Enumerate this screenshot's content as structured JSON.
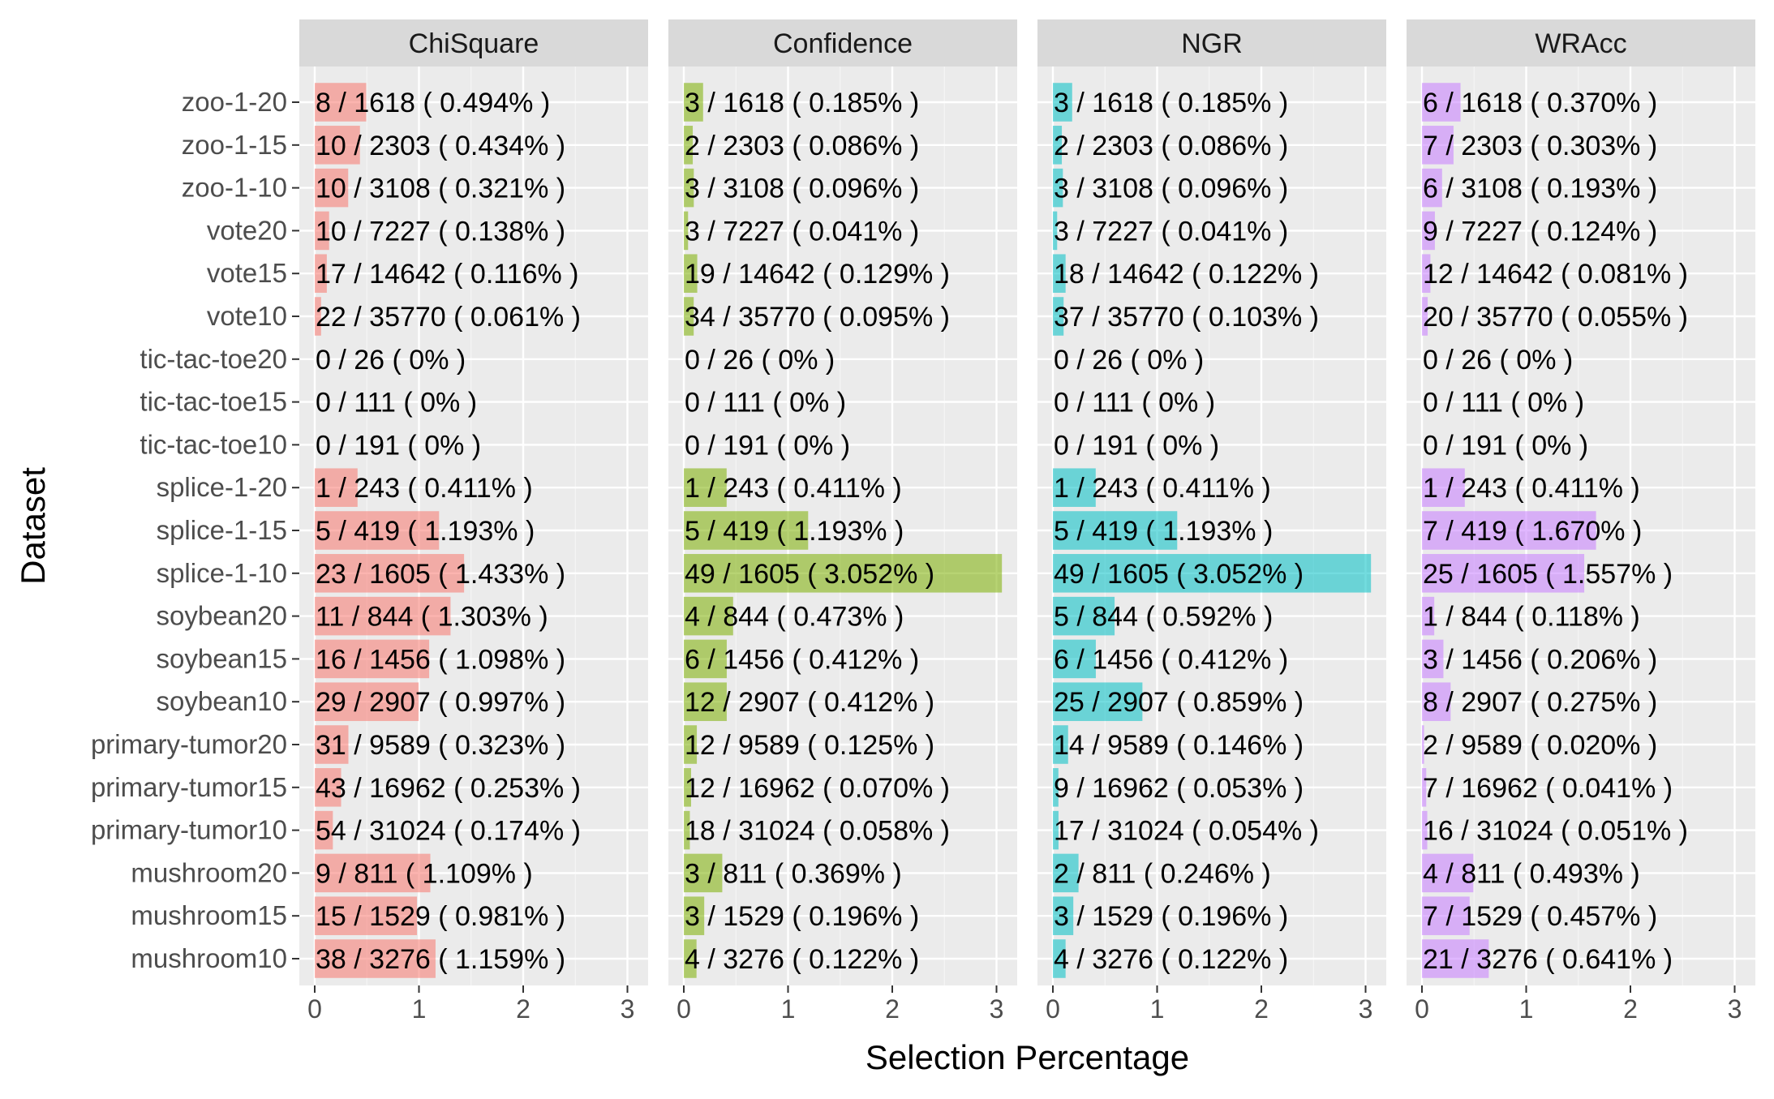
{
  "chart_data": {
    "type": "bar",
    "orientation": "horizontal",
    "facets": [
      "ChiSquare",
      "Confidence",
      "NGR",
      "WRAcc"
    ],
    "xlabel": "Selection Percentage",
    "ylabel": "Dataset",
    "xlim": [
      0,
      3.2
    ],
    "xticks": [
      0,
      1,
      2,
      3
    ],
    "grid": true,
    "categories": [
      "zoo-1-20",
      "zoo-1-15",
      "zoo-1-10",
      "vote20",
      "vote15",
      "vote10",
      "tic-tac-toe20",
      "tic-tac-toe15",
      "tic-tac-toe10",
      "splice-1-20",
      "splice-1-15",
      "splice-1-10",
      "soybean20",
      "soybean15",
      "soybean10",
      "primary-tumor20",
      "primary-tumor15",
      "primary-tumor10",
      "mushroom20",
      "mushroom15",
      "mushroom10"
    ],
    "series": [
      {
        "name": "ChiSquare",
        "color": "#F8766D",
        "values": [
          0.494,
          0.434,
          0.321,
          0.138,
          0.116,
          0.061,
          0,
          0,
          0,
          0.411,
          1.193,
          1.433,
          1.303,
          1.098,
          0.997,
          0.323,
          0.253,
          0.174,
          1.109,
          0.981,
          1.159
        ],
        "labels": [
          "8 / 1618 ( 0.494% )",
          "10 / 2303 ( 0.434% )",
          "10 / 3108 ( 0.321% )",
          "10 / 7227 ( 0.138% )",
          "17 / 14642 ( 0.116% )",
          "22 / 35770 ( 0.061% )",
          "0 / 26 ( 0% )",
          "0 / 111 ( 0% )",
          "0 / 191 ( 0% )",
          "1 / 243 ( 0.411% )",
          "5 / 419 ( 1.193% )",
          "23 / 1605 ( 1.433% )",
          "11 / 844 ( 1.303% )",
          "16 / 1456 ( 1.098% )",
          "29 / 2907 ( 0.997% )",
          "31 / 9589 ( 0.323% )",
          "43 / 16962 ( 0.253% )",
          "54 / 31024 ( 0.174% )",
          "9 / 811 ( 1.109% )",
          "15 / 1529 ( 0.981% )",
          "38 / 3276 ( 1.159% )"
        ]
      },
      {
        "name": "Confidence",
        "color": "#7CAE00",
        "values": [
          0.185,
          0.086,
          0.096,
          0.041,
          0.129,
          0.095,
          0,
          0,
          0,
          0.411,
          1.193,
          3.052,
          0.473,
          0.412,
          0.412,
          0.125,
          0.07,
          0.058,
          0.369,
          0.196,
          0.122
        ],
        "labels": [
          "3 / 1618 ( 0.185% )",
          "2 / 2303 ( 0.086% )",
          "3 / 3108 ( 0.096% )",
          "3 / 7227 ( 0.041% )",
          "19 / 14642 ( 0.129% )",
          "34 / 35770 ( 0.095% )",
          "0 / 26 ( 0% )",
          "0 / 111 ( 0% )",
          "0 / 191 ( 0% )",
          "1 / 243 ( 0.411% )",
          "5 / 419 ( 1.193% )",
          "49 / 1605 ( 3.052% )",
          "4 / 844 ( 0.473% )",
          "6 / 1456 ( 0.412% )",
          "12 / 2907 ( 0.412% )",
          "12 / 9589 ( 0.125% )",
          "12 / 16962 ( 0.070% )",
          "18 / 31024 ( 0.058% )",
          "3 / 811 ( 0.369% )",
          "3 / 1529 ( 0.196% )",
          "4 / 3276 ( 0.122% )"
        ]
      },
      {
        "name": "NGR",
        "color": "#00BFC4",
        "values": [
          0.185,
          0.086,
          0.096,
          0.041,
          0.122,
          0.103,
          0,
          0,
          0,
          0.411,
          1.193,
          3.052,
          0.592,
          0.412,
          0.859,
          0.146,
          0.053,
          0.054,
          0.246,
          0.196,
          0.122
        ],
        "labels": [
          "3 / 1618 ( 0.185% )",
          "2 / 2303 ( 0.086% )",
          "3 / 3108 ( 0.096% )",
          "3 / 7227 ( 0.041% )",
          "18 / 14642 ( 0.122% )",
          "37 / 35770 ( 0.103% )",
          "0 / 26 ( 0% )",
          "0 / 111 ( 0% )",
          "0 / 191 ( 0% )",
          "1 / 243 ( 0.411% )",
          "5 / 419 ( 1.193% )",
          "49 / 1605 ( 3.052% )",
          "5 / 844 ( 0.592% )",
          "6 / 1456 ( 0.412% )",
          "25 / 2907 ( 0.859% )",
          "14 / 9589 ( 0.146% )",
          "9 / 16962 ( 0.053% )",
          "17 / 31024 ( 0.054% )",
          "2 / 811 ( 0.246% )",
          "3 / 1529 ( 0.196% )",
          "4 / 3276 ( 0.122% )"
        ]
      },
      {
        "name": "WRAcc",
        "color": "#C77CFF",
        "values": [
          0.37,
          0.303,
          0.193,
          0.124,
          0.081,
          0.055,
          0,
          0,
          0,
          0.411,
          1.67,
          1.557,
          0.118,
          0.206,
          0.275,
          0.02,
          0.041,
          0.051,
          0.493,
          0.457,
          0.641
        ],
        "labels": [
          "6 / 1618 ( 0.370% )",
          "7 / 2303 ( 0.303% )",
          "6 / 3108 ( 0.193% )",
          "9 / 7227 ( 0.124% )",
          "12 / 14642 ( 0.081% )",
          "20 / 35770 ( 0.055% )",
          "0 / 26 ( 0% )",
          "0 / 111 ( 0% )",
          "0 / 191 ( 0% )",
          "1 / 243 ( 0.411% )",
          "7 / 419 ( 1.670% )",
          "25 / 1605 ( 1.557% )",
          "1 / 844 ( 0.118% )",
          "3 / 1456 ( 0.206% )",
          "8 / 2907 ( 0.275% )",
          "2 / 9589 ( 0.020% )",
          "7 / 16962 ( 0.041% )",
          "16 / 31024 ( 0.051% )",
          "4 / 811 ( 0.493% )",
          "7 / 1529 ( 0.457% )",
          "21 / 3276 ( 0.641% )"
        ]
      }
    ]
  }
}
